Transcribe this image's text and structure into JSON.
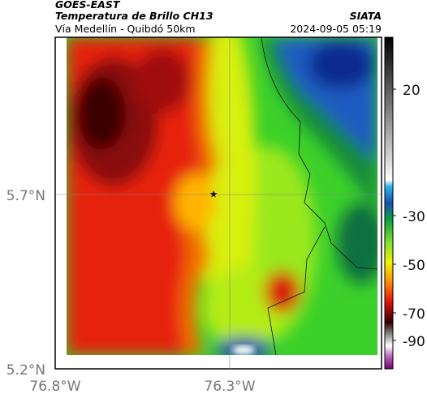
{
  "header": {
    "satellite": "GOES-EAST",
    "product": "Temperatura de Brillo CH13",
    "region": "Vía Medellín - Quibdó 50km",
    "source": "SIATA",
    "datetime": "2024-09-05 05:19"
  },
  "map": {
    "yticks": [
      "5.7°N",
      "5.2°N"
    ],
    "xticks": [
      "76.8°W",
      "76.3°W"
    ]
  },
  "colorbar": {
    "ticks": [
      20,
      -30,
      -50,
      -70,
      -90
    ]
  }
}
